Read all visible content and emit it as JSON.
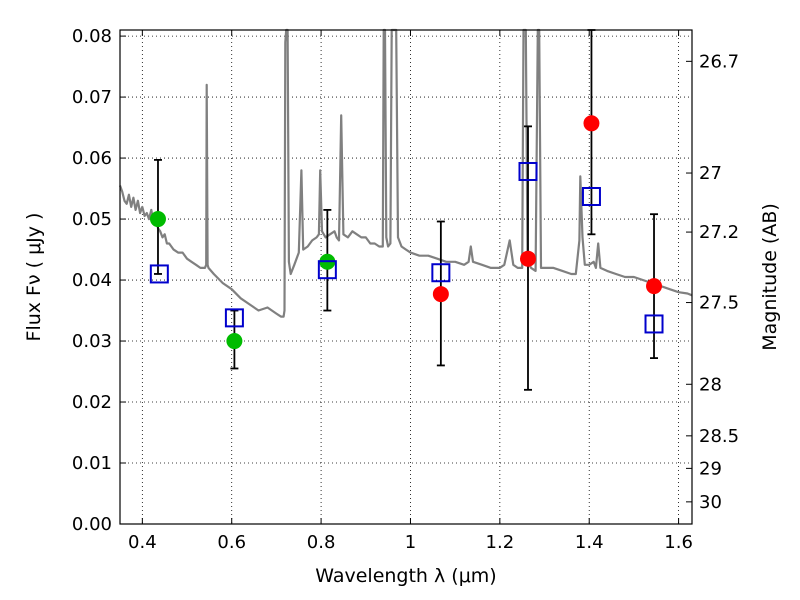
{
  "chart_data": {
    "type": "scatter",
    "title": "",
    "xlabel": "Wavelength  λ (μm)",
    "ylabel": "Flux  Fν  ( μJy )",
    "y2label": "Magnitude (AB)",
    "xlim": [
      0.35,
      1.63
    ],
    "ylim": [
      0.0,
      0.081
    ],
    "grid": true,
    "legend": "none",
    "xticks": [
      0.4,
      0.6,
      0.8,
      1.0,
      1.2,
      1.4,
      1.6
    ],
    "xtick_labels": [
      "0.4",
      "0.6",
      "0.8",
      "1",
      "1.2",
      "1.4",
      "1.6"
    ],
    "yticks": [
      0.0,
      0.01,
      0.02,
      0.03,
      0.04,
      0.05,
      0.06,
      0.07,
      0.08
    ],
    "ytick_labels": [
      "0.00",
      "0.01",
      "0.02",
      "0.03",
      "0.04",
      "0.05",
      "0.06",
      "0.07",
      "0.08"
    ],
    "y2ticks": [
      26.7,
      27,
      27.2,
      27.5,
      28,
      28.5,
      29,
      30
    ],
    "y2tick_labels": [
      "26.7",
      "27",
      "27.2",
      "27.5",
      "28",
      "28.5",
      "29",
      "30"
    ],
    "series": [
      {
        "marker": "circle",
        "color": "#00bb00",
        "points": [
          {
            "x": 0.435,
            "y": 0.05,
            "yerr": [
              0.041,
              0.0597
            ]
          },
          {
            "x": 0.606,
            "y": 0.03,
            "yerr": [
              0.0255,
              0.035
            ]
          },
          {
            "x": 0.814,
            "y": 0.043,
            "yerr": [
              0.035,
              0.0515
            ]
          }
        ]
      },
      {
        "marker": "circle",
        "color": "#ff0000",
        "points": [
          {
            "x": 1.068,
            "y": 0.0377,
            "yerr": [
              0.026,
              0.0496
            ]
          },
          {
            "x": 1.263,
            "y": 0.0435,
            "yerr": [
              0.022,
              0.0652
            ]
          },
          {
            "x": 1.405,
            "y": 0.0657,
            "yerr": [
              0.0475,
              0.081
            ]
          },
          {
            "x": 1.545,
            "y": 0.039,
            "yerr": [
              0.0272,
              0.0508
            ]
          }
        ]
      },
      {
        "marker": "open-square",
        "color": "#0000cc",
        "points": [
          {
            "x": 0.438,
            "y": 0.041
          },
          {
            "x": 0.606,
            "y": 0.0338
          },
          {
            "x": 0.814,
            "y": 0.0417
          },
          {
            "x": 1.068,
            "y": 0.0412
          },
          {
            "x": 1.263,
            "y": 0.0578
          },
          {
            "x": 1.405,
            "y": 0.0537
          },
          {
            "x": 1.545,
            "y": 0.0328
          }
        ]
      }
    ],
    "spectrum": {
      "color": "#808080",
      "points": [
        [
          0.35,
          0.0555
        ],
        [
          0.355,
          0.0545
        ],
        [
          0.36,
          0.053
        ],
        [
          0.365,
          0.0525
        ],
        [
          0.37,
          0.054
        ],
        [
          0.375,
          0.052
        ],
        [
          0.38,
          0.0535
        ],
        [
          0.385,
          0.0515
        ],
        [
          0.39,
          0.053
        ],
        [
          0.395,
          0.051
        ],
        [
          0.4,
          0.052
        ],
        [
          0.405,
          0.0505
        ],
        [
          0.41,
          0.051
        ],
        [
          0.415,
          0.05
        ],
        [
          0.42,
          0.0515
        ],
        [
          0.425,
          0.0495
        ],
        [
          0.43,
          0.05
        ],
        [
          0.435,
          0.0485
        ],
        [
          0.44,
          0.048
        ],
        [
          0.445,
          0.047
        ],
        [
          0.45,
          0.0475
        ],
        [
          0.455,
          0.046
        ],
        [
          0.46,
          0.046
        ],
        [
          0.47,
          0.045
        ],
        [
          0.48,
          0.0445
        ],
        [
          0.49,
          0.0445
        ],
        [
          0.5,
          0.0435
        ],
        [
          0.51,
          0.043
        ],
        [
          0.52,
          0.0425
        ],
        [
          0.53,
          0.042
        ],
        [
          0.54,
          0.042
        ],
        [
          0.543,
          0.0425
        ],
        [
          0.544,
          0.072
        ],
        [
          0.546,
          0.0425
        ],
        [
          0.548,
          0.042
        ],
        [
          0.56,
          0.041
        ],
        [
          0.58,
          0.0395
        ],
        [
          0.6,
          0.0385
        ],
        [
          0.62,
          0.037
        ],
        [
          0.64,
          0.036
        ],
        [
          0.66,
          0.035
        ],
        [
          0.68,
          0.0355
        ],
        [
          0.7,
          0.0345
        ],
        [
          0.71,
          0.034
        ],
        [
          0.716,
          0.034
        ],
        [
          0.718,
          0.035
        ],
        [
          0.72,
          0.079
        ],
        [
          0.722,
          0.081
        ],
        [
          0.725,
          0.081
        ],
        [
          0.728,
          0.043
        ],
        [
          0.732,
          0.041
        ],
        [
          0.74,
          0.0425
        ],
        [
          0.75,
          0.0445
        ],
        [
          0.756,
          0.058
        ],
        [
          0.76,
          0.045
        ],
        [
          0.77,
          0.0455
        ],
        [
          0.78,
          0.0465
        ],
        [
          0.79,
          0.047
        ],
        [
          0.795,
          0.0475
        ],
        [
          0.798,
          0.058
        ],
        [
          0.802,
          0.048
        ],
        [
          0.81,
          0.047
        ],
        [
          0.82,
          0.0475
        ],
        [
          0.83,
          0.048
        ],
        [
          0.835,
          0.047
        ],
        [
          0.84,
          0.0465
        ],
        [
          0.845,
          0.067
        ],
        [
          0.85,
          0.0475
        ],
        [
          0.86,
          0.047
        ],
        [
          0.87,
          0.048
        ],
        [
          0.88,
          0.0475
        ],
        [
          0.89,
          0.047
        ],
        [
          0.9,
          0.047
        ],
        [
          0.91,
          0.046
        ],
        [
          0.92,
          0.046
        ],
        [
          0.93,
          0.0455
        ],
        [
          0.938,
          0.0455
        ],
        [
          0.94,
          0.081
        ],
        [
          0.943,
          0.081
        ],
        [
          0.946,
          0.047
        ],
        [
          0.95,
          0.0455
        ],
        [
          0.955,
          0.046
        ],
        [
          0.958,
          0.081
        ],
        [
          0.962,
          0.081
        ],
        [
          0.965,
          0.081
        ],
        [
          0.968,
          0.081
        ],
        [
          0.972,
          0.047
        ],
        [
          0.98,
          0.0455
        ],
        [
          0.99,
          0.045
        ],
        [
          1.0,
          0.0445
        ],
        [
          1.02,
          0.044
        ],
        [
          1.04,
          0.044
        ],
        [
          1.06,
          0.0435
        ],
        [
          1.08,
          0.043
        ],
        [
          1.1,
          0.043
        ],
        [
          1.12,
          0.0425
        ],
        [
          1.13,
          0.043
        ],
        [
          1.135,
          0.0455
        ],
        [
          1.14,
          0.043
        ],
        [
          1.16,
          0.0425
        ],
        [
          1.18,
          0.042
        ],
        [
          1.2,
          0.042
        ],
        [
          1.21,
          0.0425
        ],
        [
          1.222,
          0.0465
        ],
        [
          1.23,
          0.0425
        ],
        [
          1.24,
          0.042
        ],
        [
          1.25,
          0.042
        ],
        [
          1.253,
          0.081
        ],
        [
          1.258,
          0.081
        ],
        [
          1.262,
          0.043
        ],
        [
          1.27,
          0.042
        ],
        [
          1.28,
          0.0415
        ],
        [
          1.285,
          0.081
        ],
        [
          1.288,
          0.081
        ],
        [
          1.292,
          0.042
        ],
        [
          1.3,
          0.042
        ],
        [
          1.32,
          0.042
        ],
        [
          1.34,
          0.0415
        ],
        [
          1.36,
          0.041
        ],
        [
          1.37,
          0.041
        ],
        [
          1.378,
          0.0465
        ],
        [
          1.38,
          0.057
        ],
        [
          1.385,
          0.047
        ],
        [
          1.39,
          0.0425
        ],
        [
          1.4,
          0.0425
        ],
        [
          1.41,
          0.043
        ],
        [
          1.415,
          0.042
        ],
        [
          1.42,
          0.046
        ],
        [
          1.425,
          0.042
        ],
        [
          1.44,
          0.0415
        ],
        [
          1.46,
          0.041
        ],
        [
          1.48,
          0.0405
        ],
        [
          1.5,
          0.0405
        ],
        [
          1.52,
          0.04
        ],
        [
          1.54,
          0.0395
        ],
        [
          1.56,
          0.039
        ],
        [
          1.58,
          0.0385
        ],
        [
          1.6,
          0.038
        ],
        [
          1.62,
          0.0378
        ],
        [
          1.63,
          0.0375
        ]
      ]
    }
  }
}
